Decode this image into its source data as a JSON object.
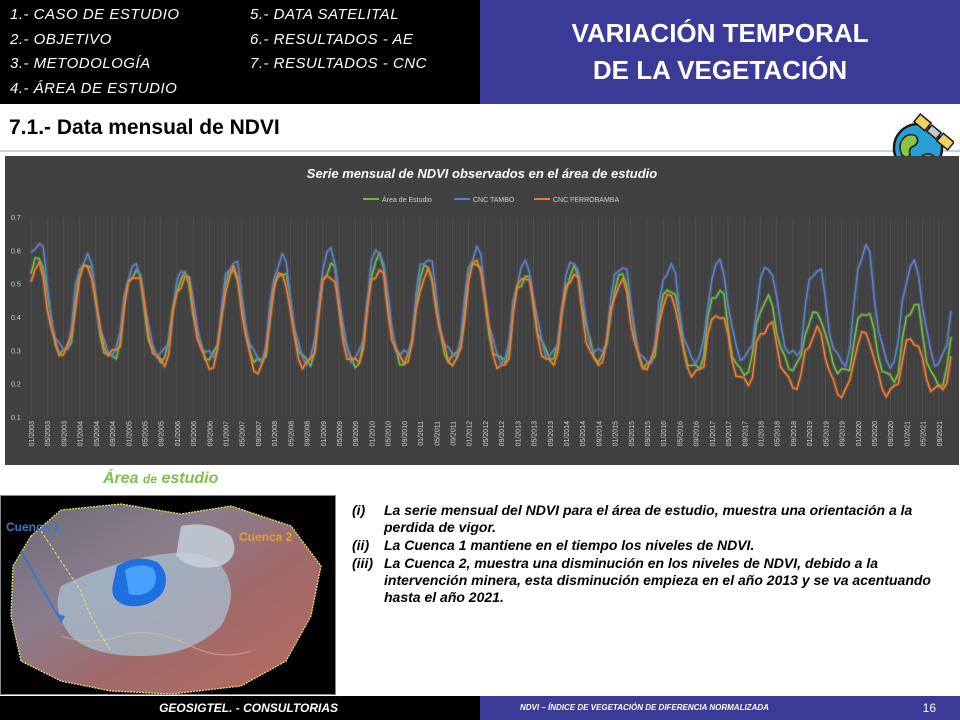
{
  "menu": {
    "items_left": [
      "1.- CASO DE ESTUDIO",
      "2.- OBJETIVO",
      "3.- METODOLOGÍA",
      "4.- ÁREA DE ESTUDIO"
    ],
    "items_right": [
      "5.- DATA SATELITAL",
      "6.- RESULTADOS - AE",
      "7.- RESULTADOS - CNC"
    ]
  },
  "header": {
    "title_line1": "VARIACIÓN TEMPORAL",
    "title_line2": "DE LA VEGETACIÓN",
    "title_bg": "#3a3b96"
  },
  "section_title": "7.1.- Data mensual de NDVI",
  "icons": {
    "globe": "globe-satellite-icon"
  },
  "chart_data": {
    "type": "line",
    "title": "Serie mensual de NDVI observados en el área de estudio",
    "ylim": [
      0.1,
      0.7
    ],
    "yticks": [
      "0.1",
      "0.2",
      "0.3",
      "0.4",
      "0.5",
      "0.6",
      "0.7"
    ],
    "x_start": "01/2003",
    "x_end": "12/2021",
    "x_tick_labels": [
      "01/2003",
      "05/2003",
      "09/2003",
      "01/2004",
      "05/2004",
      "09/2004",
      "01/2005",
      "05/2005",
      "09/2005",
      "01/2006",
      "05/2006",
      "09/2006",
      "01/2007",
      "05/2007",
      "09/2007",
      "01/2008",
      "05/2008",
      "09/2008",
      "01/2009",
      "05/2009",
      "09/2009",
      "01/2010",
      "05/2010",
      "09/2010",
      "01/2011",
      "05/2011",
      "09/2011",
      "01/2012",
      "05/2012",
      "09/2012",
      "01/2013",
      "05/2013",
      "09/2013",
      "01/2014",
      "05/2014",
      "09/2014",
      "01/2015",
      "05/2015",
      "09/2015",
      "01/2016",
      "05/2016",
      "09/2016",
      "01/2017",
      "05/2017",
      "09/2017",
      "01/2018",
      "05/2018",
      "09/2018",
      "01/2019",
      "05/2019",
      "09/2019",
      "01/2020",
      "05/2020",
      "09/2020",
      "01/2021",
      "05/2021",
      "09/2021"
    ],
    "legend_position": "top-center",
    "grid": "vertical",
    "annual_peaks": {
      "Área de Estudio": [
        0.57,
        0.56,
        0.54,
        0.53,
        0.55,
        0.54,
        0.55,
        0.57,
        0.55,
        0.58,
        0.53,
        0.54,
        0.52,
        0.48,
        0.48,
        0.46,
        0.42,
        0.42,
        0.43
      ],
      "CNC TAMBO": [
        0.62,
        0.58,
        0.56,
        0.55,
        0.57,
        0.57,
        0.59,
        0.6,
        0.59,
        0.61,
        0.56,
        0.56,
        0.55,
        0.55,
        0.57,
        0.56,
        0.55,
        0.6,
        0.55
      ],
      "CNC FERROBAMBA": [
        0.55,
        0.56,
        0.54,
        0.52,
        0.53,
        0.52,
        0.53,
        0.55,
        0.54,
        0.57,
        0.52,
        0.52,
        0.5,
        0.47,
        0.42,
        0.38,
        0.35,
        0.34,
        0.33
      ]
    },
    "annual_troughs": {
      "Área de Estudio": [
        0.3,
        0.28,
        0.27,
        0.27,
        0.26,
        0.27,
        0.27,
        0.27,
        0.27,
        0.26,
        0.28,
        0.28,
        0.26,
        0.25,
        0.23,
        0.24,
        0.23,
        0.22,
        0.21
      ],
      "CNC TAMBO": [
        0.31,
        0.29,
        0.28,
        0.28,
        0.28,
        0.28,
        0.28,
        0.28,
        0.28,
        0.27,
        0.29,
        0.3,
        0.27,
        0.27,
        0.27,
        0.28,
        0.27,
        0.27,
        0.27
      ],
      "CNC FERROBAMBA": [
        0.29,
        0.28,
        0.26,
        0.26,
        0.25,
        0.26,
        0.26,
        0.26,
        0.26,
        0.25,
        0.27,
        0.27,
        0.25,
        0.22,
        0.2,
        0.2,
        0.18,
        0.18,
        0.18
      ]
    },
    "series": [
      {
        "name": "Área de Estudio",
        "color": "#6fb84a"
      },
      {
        "name": "CNC TAMBO",
        "color": "#5b7fc2"
      },
      {
        "name": "CNC FERROBAMBA",
        "color": "#ed7d31"
      }
    ]
  },
  "area_label": {
    "main_before": "Área ",
    "small": "de",
    "main_after": " estudio"
  },
  "map": {
    "label_cuenca1": "Cuenca 1",
    "label_cuenca2": "Cuenca  2",
    "cuenca1_color": "#3b77c6",
    "cuenca2_color": "#e0a030"
  },
  "notes": [
    {
      "marker": "(i)",
      "text": "La serie mensual del NDVI para el área de estudio, muestra una orientación a la perdida de vigor."
    },
    {
      "marker": "(ii)",
      "text": "La Cuenca 1 mantiene en el tiempo los niveles de NDVI."
    },
    {
      "marker": "(iii)",
      "text": "La Cuenca 2, muestra una disminución en los niveles de NDVI, debido a la intervención minera, esta disminución empieza en el año 2013 y se va acentuando hasta el año 2021."
    }
  ],
  "footer": {
    "left": "GEOSIGTEL. - CONSULTORIAS",
    "right": "NDVI – ÍNDICE DE VEGETACIÓN DE DIFERENCIA NORMALIZADA",
    "page_number": "16"
  }
}
